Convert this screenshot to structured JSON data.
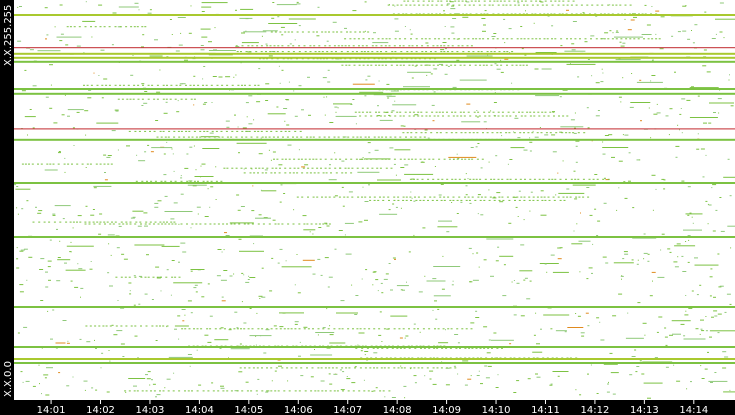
{
  "chart_data": {
    "type": "heatmap",
    "title": "",
    "xlabel": "",
    "ylabel": "",
    "y_axis_labels": {
      "top": "X.X.255.255",
      "bottom": "X.X.0.0"
    },
    "x_ticks": [
      "14:01",
      "14:02",
      "14:03",
      "14:04",
      "14:05",
      "14:06",
      "14:07",
      "14:08",
      "14:09",
      "14:10",
      "14:11",
      "14:12",
      "14:13",
      "14:14"
    ],
    "xlim": [
      "14:00:15",
      "14:14:50"
    ],
    "colors": {
      "low": "#7cc242",
      "mid": "#a9c92f",
      "high": "#e08a1e",
      "alert": "#c0282d",
      "sparse": "#8fc97a",
      "background": "#ffffff",
      "axis": "#000000"
    },
    "grid": false,
    "legend": "none",
    "bands": [
      {
        "row": 0.035,
        "level": "mid"
      },
      {
        "row": 0.118,
        "level": "alert"
      },
      {
        "row": 0.132,
        "level": "mid"
      },
      {
        "row": 0.142,
        "level": "mid"
      },
      {
        "row": 0.152,
        "level": "low"
      },
      {
        "row": 0.22,
        "level": "low"
      },
      {
        "row": 0.232,
        "level": "low"
      },
      {
        "row": 0.321,
        "level": "alert"
      },
      {
        "row": 0.347,
        "level": "low"
      },
      {
        "row": 0.455,
        "level": "low"
      },
      {
        "row": 0.59,
        "level": "low"
      },
      {
        "row": 0.765,
        "level": "low"
      },
      {
        "row": 0.865,
        "level": "low"
      },
      {
        "row": 0.895,
        "level": "mid"
      },
      {
        "row": 0.905,
        "level": "low"
      }
    ]
  }
}
